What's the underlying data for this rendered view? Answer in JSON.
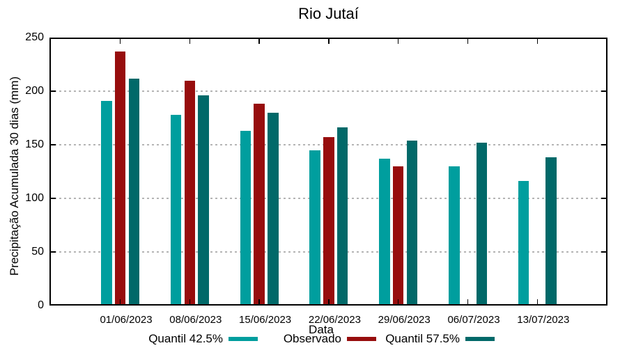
{
  "chart_data": {
    "type": "bar",
    "title": "Rio Jutaí",
    "xlabel": "Data",
    "ylabel": "Precipitação Acumulada 30 dias (mm)",
    "ylim": [
      0,
      250
    ],
    "yticks": [
      0,
      50,
      100,
      150,
      200,
      250
    ],
    "grid": "horizontal dotted lines at 50, 100, 150, 200",
    "legend_position": "bottom",
    "categories": [
      "01/06/2023",
      "08/06/2023",
      "15/06/2023",
      "22/06/2023",
      "29/06/2023",
      "06/07/2023",
      "13/07/2023"
    ],
    "series": [
      {
        "name": "Quantil 42.5%",
        "color": "#009E9E",
        "values": [
          191,
          178,
          163,
          145,
          137,
          130,
          116
        ]
      },
      {
        "name": "Observado",
        "color": "#970D0D",
        "values": [
          237,
          210,
          188,
          157,
          130,
          null,
          null
        ]
      },
      {
        "name": "Quantil 57.5%",
        "color": "#016969",
        "values": [
          212,
          196,
          180,
          166,
          154,
          152,
          138
        ]
      }
    ]
  }
}
